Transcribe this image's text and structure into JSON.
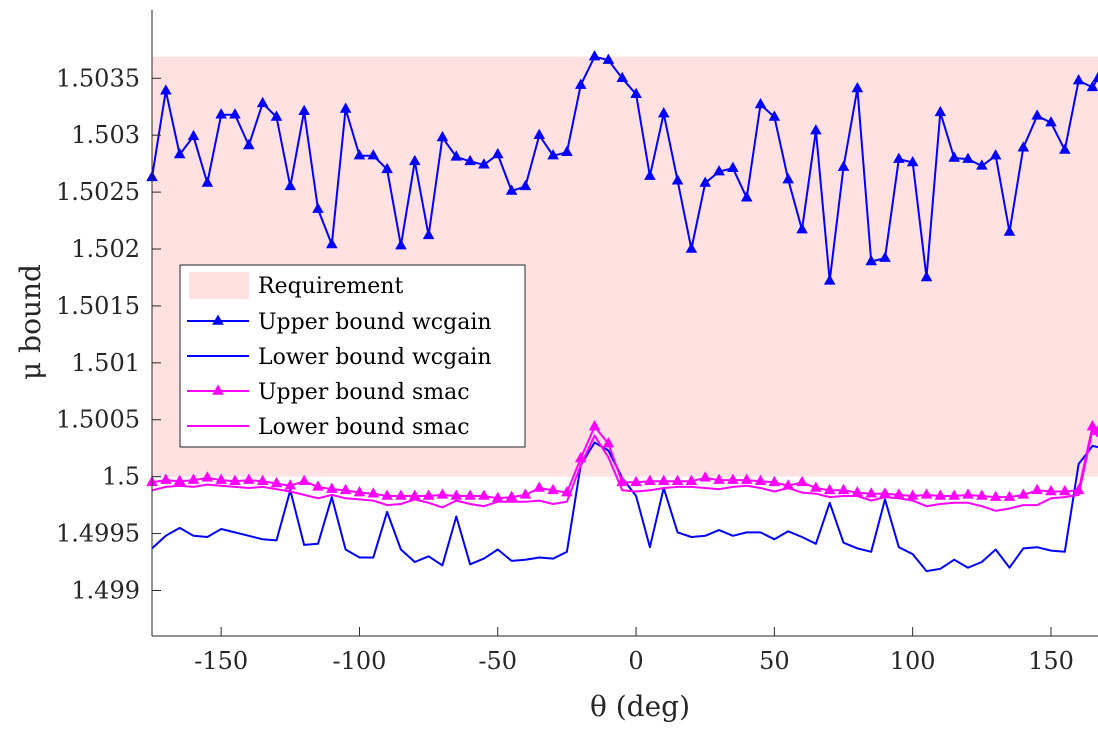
{
  "chart_data": {
    "type": "line",
    "xlabel": "θ (deg)",
    "ylabel": "μ bound",
    "xlim": [
      -175,
      167
    ],
    "ylim": [
      1.4986,
      1.5041
    ],
    "grid": false,
    "legend_position": "center-left",
    "x_ticks": [
      "-150",
      "-100",
      "-50",
      "0",
      "50",
      "100",
      "150"
    ],
    "y_ticks": [
      "1.499",
      "1.4995",
      "1.5",
      "1.5005",
      "1.501",
      "1.5015",
      "1.502",
      "1.5025",
      "1.503",
      "1.5035"
    ],
    "requirement_band": {
      "name": "Requirement",
      "y_from": 1.5,
      "y_to": 1.50369,
      "color": "#ffe1e1"
    },
    "x": [
      -175,
      -170,
      -165,
      -160,
      -155,
      -150,
      -145,
      -140,
      -135,
      -130,
      -125,
      -120,
      -115,
      -110,
      -105,
      -100,
      -95,
      -90,
      -85,
      -80,
      -75,
      -70,
      -65,
      -60,
      -55,
      -50,
      -45,
      -40,
      -35,
      -30,
      -25,
      -20,
      -15,
      -10,
      -5,
      0,
      5,
      10,
      15,
      20,
      25,
      30,
      35,
      40,
      45,
      50,
      55,
      60,
      65,
      70,
      75,
      80,
      85,
      90,
      95,
      100,
      105,
      110,
      115,
      120,
      125,
      130,
      135,
      140,
      145,
      150,
      155,
      160,
      165,
      167
    ],
    "series": [
      {
        "name": "Upper bound wcgain",
        "color": "#0000ff",
        "marker": "triangle",
        "values": [
          1.50263,
          1.50339,
          1.50283,
          1.50299,
          1.50258,
          1.50318,
          1.50318,
          1.50291,
          1.50328,
          1.50316,
          1.50255,
          1.50321,
          1.50235,
          1.50204,
          1.50323,
          1.50282,
          1.50282,
          1.5027,
          1.50203,
          1.50277,
          1.50212,
          1.50298,
          1.50281,
          1.50277,
          1.50274,
          1.50283,
          1.50251,
          1.50255,
          1.503,
          1.50282,
          1.50285,
          1.50344,
          1.50369,
          1.50366,
          1.5035,
          1.50336,
          1.50264,
          1.50319,
          1.5026,
          1.502,
          1.50258,
          1.50268,
          1.50271,
          1.50245,
          1.50327,
          1.50316,
          1.50261,
          1.50217,
          1.50304,
          1.50172,
          1.50272,
          1.50341,
          1.50189,
          1.50192,
          1.50279,
          1.50276,
          1.50175,
          1.5032,
          1.5028,
          1.50279,
          1.50273,
          1.50282,
          1.50215,
          1.50289,
          1.50317,
          1.50311,
          1.50287,
          1.50348,
          1.50342,
          1.5035
        ]
      },
      {
        "name": "Lower bound wcgain",
        "color": "#0000ff",
        "marker": "none",
        "values": [
          1.49937,
          1.49948,
          1.49955,
          1.49948,
          1.49947,
          1.49954,
          1.49951,
          1.49948,
          1.49945,
          1.49944,
          1.49988,
          1.4994,
          1.49941,
          1.49982,
          1.49936,
          1.49929,
          1.49929,
          1.49969,
          1.49936,
          1.49925,
          1.4993,
          1.49922,
          1.49965,
          1.49923,
          1.49928,
          1.49936,
          1.49926,
          1.49927,
          1.49929,
          1.49928,
          1.49934,
          1.5001,
          1.5003,
          1.50023,
          1.49999,
          1.49983,
          1.49938,
          1.4999,
          1.49951,
          1.49947,
          1.49948,
          1.49953,
          1.49948,
          1.49951,
          1.49951,
          1.49945,
          1.49952,
          1.49947,
          1.49941,
          1.49977,
          1.49942,
          1.49937,
          1.49934,
          1.4998,
          1.49938,
          1.49932,
          1.49917,
          1.49919,
          1.49927,
          1.4992,
          1.49925,
          1.49936,
          1.4992,
          1.49937,
          1.49938,
          1.49935,
          1.49934,
          1.50011,
          1.50027,
          1.50026
        ]
      },
      {
        "name": "Upper bound smac",
        "color": "#ff00ff",
        "marker": "triangle",
        "values": [
          1.49995,
          1.49997,
          1.49996,
          1.49997,
          1.49999,
          1.49997,
          1.49996,
          1.49997,
          1.49996,
          1.49994,
          1.49992,
          1.49996,
          1.49991,
          1.49989,
          1.49988,
          1.49986,
          1.49985,
          1.49983,
          1.49983,
          1.49983,
          1.49983,
          1.49984,
          1.49983,
          1.49983,
          1.49983,
          1.49981,
          1.49982,
          1.49984,
          1.4999,
          1.49988,
          1.49986,
          1.50016,
          1.50044,
          1.50029,
          1.49995,
          1.49995,
          1.49996,
          1.49996,
          1.49996,
          1.49996,
          1.49999,
          1.49997,
          1.49997,
          1.49997,
          1.49996,
          1.49995,
          1.49992,
          1.49995,
          1.4999,
          1.49988,
          1.49988,
          1.49986,
          1.49985,
          1.49985,
          1.49984,
          1.49983,
          1.49984,
          1.49983,
          1.49983,
          1.49984,
          1.49983,
          1.49982,
          1.49982,
          1.49984,
          1.49988,
          1.49987,
          1.49987,
          1.49988,
          1.50044,
          1.5004
        ]
      },
      {
        "name": "Lower bound smac",
        "color": "#ff00ff",
        "marker": "none",
        "values": [
          1.49988,
          1.49991,
          1.49992,
          1.49991,
          1.49993,
          1.49992,
          1.49991,
          1.4999,
          1.49991,
          1.49989,
          1.49987,
          1.49984,
          1.49981,
          1.49984,
          1.49981,
          1.4998,
          1.49979,
          1.49975,
          1.49976,
          1.4998,
          1.49977,
          1.49973,
          1.49979,
          1.49976,
          1.49974,
          1.49978,
          1.49978,
          1.49978,
          1.49979,
          1.49976,
          1.49978,
          1.5001,
          1.50036,
          1.50017,
          1.49988,
          1.49987,
          1.49988,
          1.4999,
          1.49991,
          1.49991,
          1.4999,
          1.49989,
          1.49991,
          1.49992,
          1.4999,
          1.49987,
          1.4999,
          1.49986,
          1.49985,
          1.49982,
          1.49983,
          1.49983,
          1.49979,
          1.49982,
          1.49981,
          1.49979,
          1.49974,
          1.49976,
          1.49977,
          1.49977,
          1.49974,
          1.4997,
          1.49972,
          1.49975,
          1.49975,
          1.49981,
          1.49982,
          1.49984,
          1.50041,
          1.50035
        ]
      }
    ]
  }
}
